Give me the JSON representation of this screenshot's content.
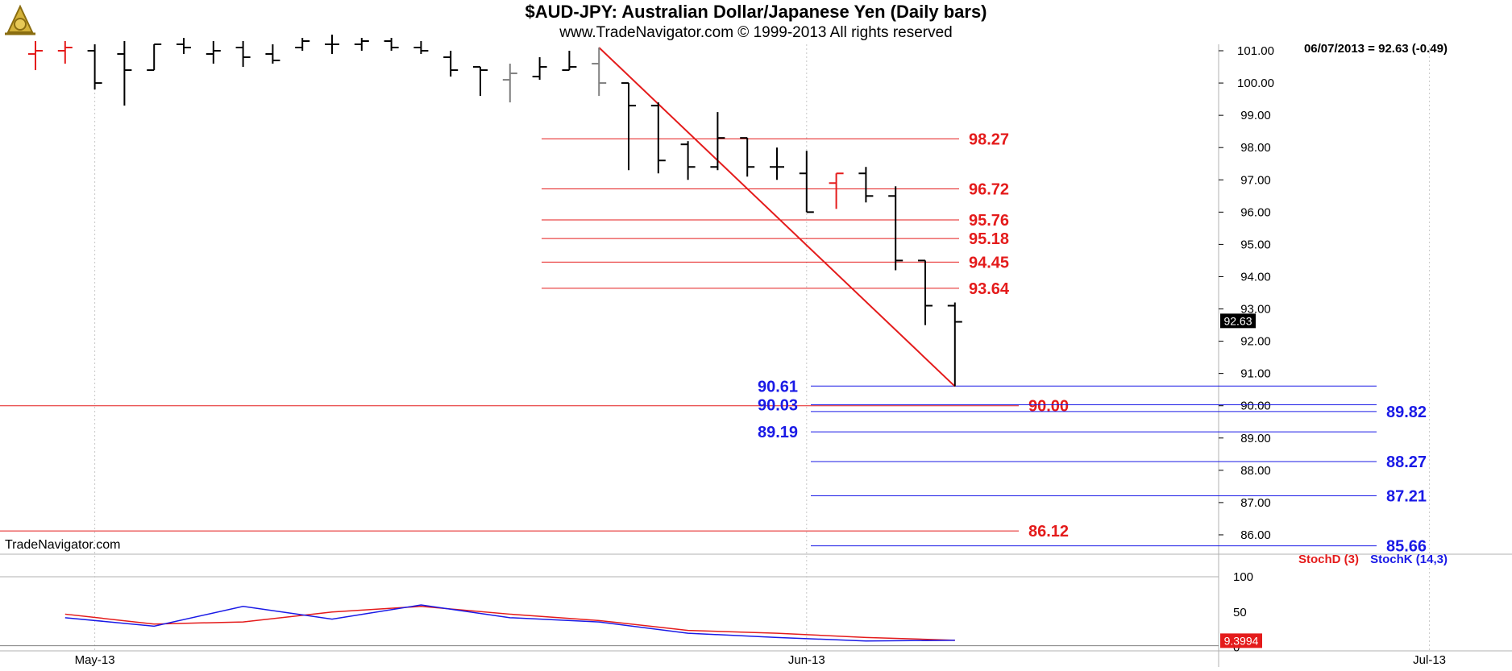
{
  "header": {
    "title": "$AUD-JPY:  Australian Dollar/Japanese Yen  (Daily bars)",
    "subtitle": "www.TradeNavigator.com © 1999-2013 All rights reserved",
    "readout": "06/07/2013 = 92.63 (-0.49)",
    "brand": "TradeNavigator.com"
  },
  "colors": {
    "up_bar": "#e41b1b",
    "down_bar": "#000000",
    "neutral_bar": "#808080",
    "fib_red": "#e41b1b",
    "fib_blue": "#1a1ae6",
    "grid": "#c8c8c8",
    "last_price_bg": "#000000"
  },
  "chart_data": [
    {
      "type": "ohlc",
      "title": "$AUD-JPY:  Australian Dollar/Japanese Yen  (Daily bars)",
      "ylim": [
        85.4,
        101.2
      ],
      "y_ticks": [
        "86.00",
        "87.00",
        "88.00",
        "89.00",
        "90.00",
        "91.00",
        "92.00",
        "93.00",
        "94.00",
        "95.00",
        "96.00",
        "97.00",
        "98.00",
        "99.00",
        "100.00",
        "101.00"
      ],
      "x_ticks": [
        {
          "label": "May-13",
          "index": 2
        },
        {
          "label": "Jun-13",
          "index": 26
        },
        {
          "label": "Jul-13",
          "index": 47
        }
      ],
      "x_slots": 48,
      "bars": [
        {
          "o": 100.9,
          "h": 101.3,
          "l": 100.4,
          "c": 101.0,
          "color": "up"
        },
        {
          "o": 101.0,
          "h": 101.3,
          "l": 100.6,
          "c": 101.1,
          "color": "up"
        },
        {
          "o": 101.0,
          "h": 101.2,
          "l": 99.8,
          "c": 100.0,
          "color": "down"
        },
        {
          "o": 100.9,
          "h": 101.3,
          "l": 99.3,
          "c": 100.4,
          "color": "down"
        },
        {
          "o": 100.4,
          "h": 101.2,
          "l": 100.4,
          "c": 101.2,
          "color": "down"
        },
        {
          "o": 101.2,
          "h": 101.4,
          "l": 100.9,
          "c": 101.1,
          "color": "down"
        },
        {
          "o": 100.9,
          "h": 101.3,
          "l": 100.6,
          "c": 101.0,
          "color": "down"
        },
        {
          "o": 101.1,
          "h": 101.3,
          "l": 100.5,
          "c": 100.8,
          "color": "down"
        },
        {
          "o": 100.9,
          "h": 101.2,
          "l": 100.6,
          "c": 100.7,
          "color": "down"
        },
        {
          "o": 101.1,
          "h": 101.4,
          "l": 101.0,
          "c": 101.3,
          "color": "down"
        },
        {
          "o": 101.2,
          "h": 101.5,
          "l": 100.9,
          "c": 101.2,
          "color": "down"
        },
        {
          "o": 101.2,
          "h": 101.4,
          "l": 101.0,
          "c": 101.3,
          "color": "down"
        },
        {
          "o": 101.3,
          "h": 101.4,
          "l": 101.0,
          "c": 101.1,
          "color": "down"
        },
        {
          "o": 101.1,
          "h": 101.3,
          "l": 100.9,
          "c": 101.0,
          "color": "down"
        },
        {
          "o": 100.8,
          "h": 101.0,
          "l": 100.2,
          "c": 100.4,
          "color": "down"
        },
        {
          "o": 100.5,
          "h": 100.5,
          "l": 99.6,
          "c": 100.4,
          "color": "down"
        },
        {
          "o": 100.1,
          "h": 100.6,
          "l": 99.4,
          "c": 100.3,
          "color": "neutral"
        },
        {
          "o": 100.2,
          "h": 100.8,
          "l": 100.1,
          "c": 100.5,
          "color": "down"
        },
        {
          "o": 100.4,
          "h": 101.0,
          "l": 100.4,
          "c": 100.5,
          "color": "down"
        },
        {
          "o": 100.6,
          "h": 101.1,
          "l": 99.6,
          "c": 100.0,
          "color": "neutral"
        },
        {
          "o": 100.0,
          "h": 100.0,
          "l": 97.3,
          "c": 99.3,
          "color": "down"
        },
        {
          "o": 99.3,
          "h": 99.4,
          "l": 97.2,
          "c": 97.6,
          "color": "down"
        },
        {
          "o": 98.1,
          "h": 98.2,
          "l": 97.0,
          "c": 97.4,
          "color": "down"
        },
        {
          "o": 97.4,
          "h": 99.1,
          "l": 97.3,
          "c": 98.3,
          "color": "down"
        },
        {
          "o": 98.3,
          "h": 98.3,
          "l": 97.1,
          "c": 97.4,
          "color": "down"
        },
        {
          "o": 97.4,
          "h": 98.0,
          "l": 97.0,
          "c": 97.4,
          "color": "down"
        },
        {
          "o": 97.2,
          "h": 97.9,
          "l": 96.0,
          "c": 96.0,
          "color": "down"
        },
        {
          "o": 96.9,
          "h": 97.2,
          "l": 96.1,
          "c": 97.2,
          "color": "up"
        },
        {
          "o": 97.2,
          "h": 97.4,
          "l": 96.3,
          "c": 96.5,
          "color": "down"
        },
        {
          "o": 96.5,
          "h": 96.8,
          "l": 94.2,
          "c": 94.5,
          "color": "down"
        },
        {
          "o": 94.5,
          "h": 94.5,
          "l": 92.5,
          "c": 93.1,
          "color": "down"
        },
        {
          "o": 93.1,
          "h": 93.2,
          "l": 90.6,
          "c": 92.6,
          "color": "down"
        }
      ],
      "trendline": {
        "from": {
          "index": 19,
          "value": 101.1
        },
        "to": {
          "index": 31,
          "value": 90.6
        }
      },
      "last_price_label": "92.63",
      "red_levels_upper": [
        {
          "label": "98.27",
          "value": 98.27
        },
        {
          "label": "96.72",
          "value": 96.72
        },
        {
          "label": "95.76",
          "value": 95.76
        },
        {
          "label": "95.18",
          "value": 95.18
        },
        {
          "label": "94.45",
          "value": 94.45
        },
        {
          "label": "93.64",
          "value": 93.64
        }
      ],
      "red_levels_lower": [
        {
          "label": "90.00",
          "value": 90.0
        },
        {
          "label": "86.12",
          "value": 86.12
        }
      ],
      "blue_levels_left": [
        {
          "label": "90.61",
          "value": 90.61
        },
        {
          "label": "90.03",
          "value": 90.03
        },
        {
          "label": "89.19",
          "value": 89.19
        }
      ],
      "blue_levels_right": [
        {
          "label": "89.82",
          "value": 89.82
        },
        {
          "label": "88.27",
          "value": 88.27
        },
        {
          "label": "87.21",
          "value": 87.21
        },
        {
          "label": "85.66",
          "value": 85.66
        }
      ]
    },
    {
      "type": "line",
      "ylim": [
        -5,
        100
      ],
      "y_ticks": [
        "0",
        "50",
        "100"
      ],
      "last_value_label": "9.3994",
      "series": [
        {
          "name": "StochD (3)",
          "color": "#e41b1b",
          "x": [
            1,
            4,
            7,
            10,
            13,
            16,
            19,
            22,
            25,
            28,
            31
          ],
          "values": [
            47,
            33,
            36,
            50,
            58,
            47,
            38,
            24,
            20,
            14,
            10
          ]
        },
        {
          "name": "StochK (14,3)",
          "color": "#1a1ae6",
          "x": [
            1,
            4,
            7,
            10,
            13,
            16,
            19,
            22,
            25,
            28,
            31
          ],
          "values": [
            42,
            30,
            58,
            40,
            60,
            42,
            36,
            20,
            14,
            9,
            10
          ]
        }
      ]
    }
  ]
}
